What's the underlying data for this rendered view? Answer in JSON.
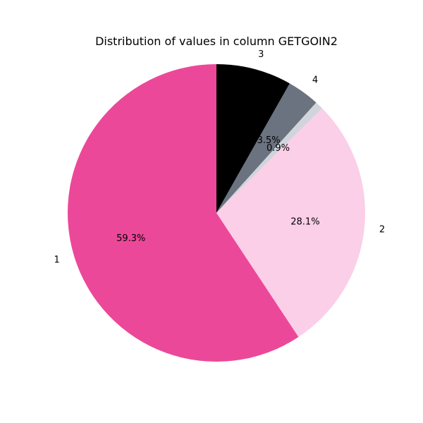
{
  "chart_data": {
    "type": "pie",
    "title": "Distribution of values in column GETGOIN2",
    "start_angle_deg": 90,
    "direction": "clockwise",
    "slices": [
      {
        "label": "3",
        "value": 8.2,
        "pct_label": "8.2%",
        "color": "#000000"
      },
      {
        "label": "4",
        "value": 3.5,
        "pct_label": "3.5%",
        "color": "#6b7280"
      },
      {
        "label": "",
        "value": 0.9,
        "pct_label": "0.9%",
        "color": "#d1d5db"
      },
      {
        "label": "2",
        "value": 28.1,
        "pct_label": "28.1%",
        "color": "#fbcfe8"
      },
      {
        "label": "1",
        "value": 59.3,
        "pct_label": "59.3%",
        "color": "#ec4899"
      }
    ]
  }
}
